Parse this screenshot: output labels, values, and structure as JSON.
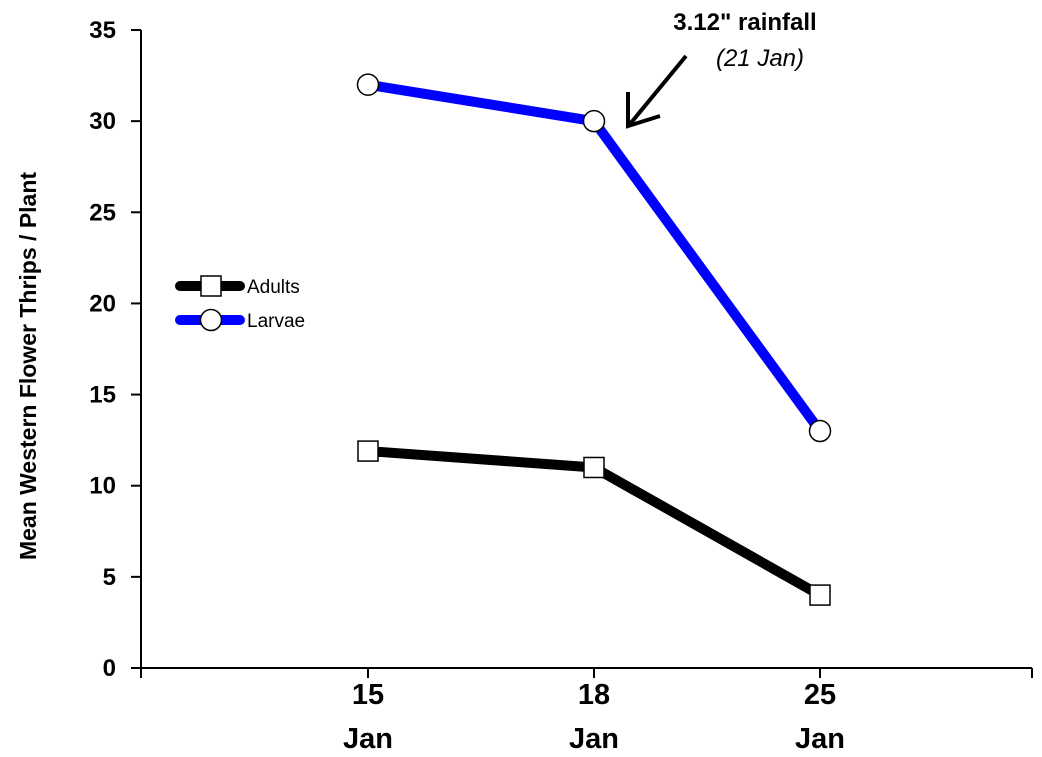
{
  "chart_data": {
    "type": "line",
    "title": "",
    "xlabel": "",
    "ylabel": "Mean Western Flower Thrips / Plant",
    "x": [
      {
        "day": "15",
        "month": "Jan"
      },
      {
        "day": "18",
        "month": "Jan"
      },
      {
        "day": "25",
        "month": "Jan"
      }
    ],
    "ylim": [
      0,
      35
    ],
    "yticks": [
      0,
      5,
      10,
      15,
      20,
      25,
      30,
      35
    ],
    "grid": false,
    "legend_position": "middle-left",
    "series": [
      {
        "name": "Adults",
        "values": [
          11.9,
          11,
          4
        ],
        "color": "#000000",
        "marker": "square"
      },
      {
        "name": "Larvae",
        "values": [
          32,
          30,
          13
        ],
        "color": "#0000FF",
        "marker": "circle"
      }
    ],
    "annotation": {
      "text": "3.12\" rainfall",
      "subtext": "(21 Jan)",
      "points_to": {
        "x_index": 1,
        "y": 30
      }
    }
  }
}
